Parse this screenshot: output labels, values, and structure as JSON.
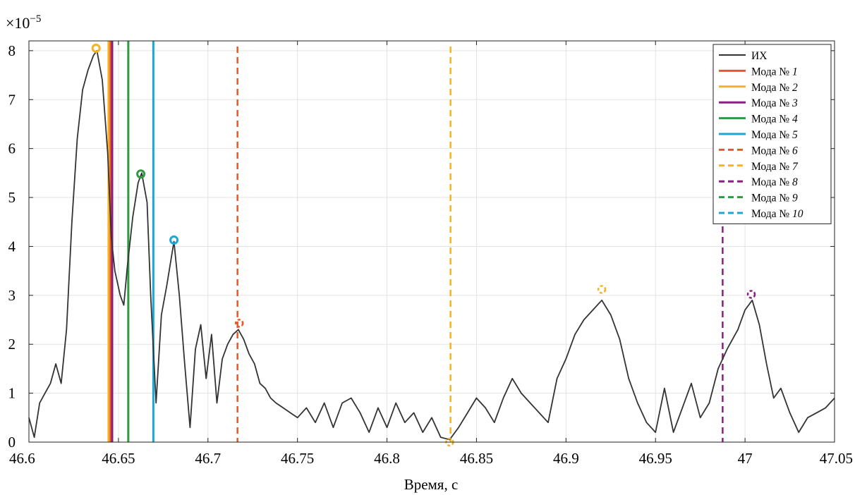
{
  "chart_data": {
    "type": "line",
    "xlabel": "Время, c",
    "ylabel": "",
    "y_exponent_label": "×10",
    "y_exponent_power": "−5",
    "xlim": [
      46.6,
      47.05
    ],
    "ylim": [
      0,
      8.2
    ],
    "x_ticks": [
      46.6,
      46.65,
      46.7,
      46.75,
      46.8,
      46.85,
      46.9,
      46.95,
      47.0,
      47.05
    ],
    "x_tick_labels": [
      "46.6",
      "46.65",
      "46.7",
      "46.75",
      "46.8",
      "46.85",
      "46.9",
      "46.95",
      "47",
      "47.05"
    ],
    "y_ticks": [
      0,
      1,
      2,
      3,
      4,
      5,
      6,
      7,
      8
    ],
    "y_tick_labels": [
      "0",
      "1",
      "2",
      "3",
      "4",
      "5",
      "6",
      "7",
      "8"
    ],
    "grid": true,
    "legend_position": "top-right",
    "signal": {
      "name": "ИХ",
      "color": "#333333",
      "x": [
        46.6,
        46.603,
        46.606,
        46.609,
        46.612,
        46.615,
        46.618,
        46.621,
        46.624,
        46.627,
        46.63,
        46.633,
        46.636,
        46.638,
        46.641,
        46.644,
        46.646,
        46.648,
        46.651,
        46.653,
        46.655,
        46.658,
        46.661,
        46.663,
        46.666,
        46.668,
        46.671,
        46.674,
        46.677,
        46.681,
        46.684,
        46.687,
        46.69,
        46.693,
        46.696,
        46.699,
        46.702,
        46.705,
        46.708,
        46.711,
        46.714,
        46.717,
        46.72,
        46.723,
        46.726,
        46.729,
        46.732,
        46.735,
        46.738,
        46.742,
        46.746,
        46.75,
        46.755,
        46.76,
        46.765,
        46.77,
        46.775,
        46.78,
        46.785,
        46.79,
        46.795,
        46.8,
        46.805,
        46.81,
        46.815,
        46.82,
        46.825,
        46.83,
        46.835,
        46.84,
        46.845,
        46.85,
        46.855,
        46.86,
        46.865,
        46.87,
        46.875,
        46.88,
        46.885,
        46.89,
        46.895,
        46.9,
        46.905,
        46.91,
        46.915,
        46.92,
        46.925,
        46.93,
        46.935,
        46.94,
        46.945,
        46.95,
        46.955,
        46.96,
        46.965,
        46.97,
        46.975,
        46.98,
        46.985,
        46.99,
        46.993,
        46.996,
        47.0,
        47.004,
        47.008,
        47.012,
        47.016,
        47.02,
        47.025,
        47.03,
        47.035,
        47.04,
        47.045,
        47.05
      ],
      "y": [
        0.5,
        0.1,
        0.8,
        1.0,
        1.2,
        1.6,
        1.2,
        2.3,
        4.5,
        6.2,
        7.2,
        7.6,
        7.9,
        8.0,
        7.4,
        5.9,
        4.2,
        3.5,
        3.0,
        2.8,
        3.6,
        4.6,
        5.3,
        5.5,
        4.9,
        3.0,
        0.8,
        2.6,
        3.2,
        4.1,
        3.0,
        1.6,
        0.3,
        1.9,
        2.4,
        1.3,
        2.2,
        0.8,
        1.7,
        2.0,
        2.2,
        2.3,
        2.1,
        1.8,
        1.6,
        1.2,
        1.1,
        0.9,
        0.8,
        0.7,
        0.6,
        0.5,
        0.7,
        0.4,
        0.8,
        0.3,
        0.8,
        0.9,
        0.6,
        0.2,
        0.7,
        0.3,
        0.8,
        0.4,
        0.6,
        0.2,
        0.5,
        0.1,
        0.05,
        0.3,
        0.6,
        0.9,
        0.7,
        0.4,
        0.9,
        1.3,
        1.0,
        0.8,
        0.6,
        0.4,
        1.3,
        1.7,
        2.2,
        2.5,
        2.7,
        2.9,
        2.6,
        2.1,
        1.3,
        0.8,
        0.4,
        0.2,
        1.1,
        0.2,
        0.7,
        1.2,
        0.5,
        0.8,
        1.5,
        1.9,
        2.1,
        2.3,
        2.7,
        2.9,
        2.4,
        1.6,
        0.9,
        1.1,
        0.6,
        0.2,
        0.5,
        0.6,
        0.7,
        0.9
      ]
    },
    "modes": [
      {
        "name": "Мода № ",
        "num": "1",
        "color": "#e8572a",
        "style": "solid",
        "x": 46.6455
      },
      {
        "name": "Мода № ",
        "num": "2",
        "color": "#f6b223",
        "style": "solid",
        "x": 46.6445
      },
      {
        "name": "Мода № ",
        "num": "3",
        "color": "#8c1e82",
        "style": "solid",
        "x": 46.6465
      },
      {
        "name": "Мода № ",
        "num": "4",
        "color": "#2e9a41",
        "style": "solid",
        "x": 46.6555
      },
      {
        "name": "Мода № ",
        "num": "5",
        "color": "#1aa7d6",
        "style": "solid",
        "x": 46.6695
      },
      {
        "name": "Мода № ",
        "num": "6",
        "color": "#e8572a",
        "style": "dashed",
        "x": 46.7165
      },
      {
        "name": "Мода № ",
        "num": "7",
        "color": "#f6b223",
        "style": "dashed",
        "x": 46.8355
      },
      {
        "name": "Мода № ",
        "num": "8",
        "color": "#8c1e82",
        "style": "dashed",
        "x": 46.9875
      },
      {
        "name": "Мода № ",
        "num": "9",
        "color": "#2e9a41",
        "style": "dashed",
        "x": null
      },
      {
        "name": "Мода № ",
        "num": "10",
        "color": "#1aa7d6",
        "style": "dashed",
        "x": null
      }
    ],
    "peak_markers": [
      {
        "x": 46.6375,
        "y": 8.05,
        "color": "#f6b223",
        "style": "solid"
      },
      {
        "x": 46.6625,
        "y": 5.48,
        "color": "#2e9a41",
        "style": "solid"
      },
      {
        "x": 46.681,
        "y": 4.13,
        "color": "#1aa7d6",
        "style": "solid"
      },
      {
        "x": 46.7175,
        "y": 2.43,
        "color": "#e8572a",
        "style": "dashed"
      },
      {
        "x": 46.835,
        "y": 0.0,
        "color": "#f6b223",
        "style": "dashed"
      },
      {
        "x": 46.92,
        "y": 3.12,
        "color": "#f6b223",
        "style": "dashed"
      },
      {
        "x": 47.0035,
        "y": 3.02,
        "color": "#8c1e82",
        "style": "dashed"
      }
    ]
  }
}
